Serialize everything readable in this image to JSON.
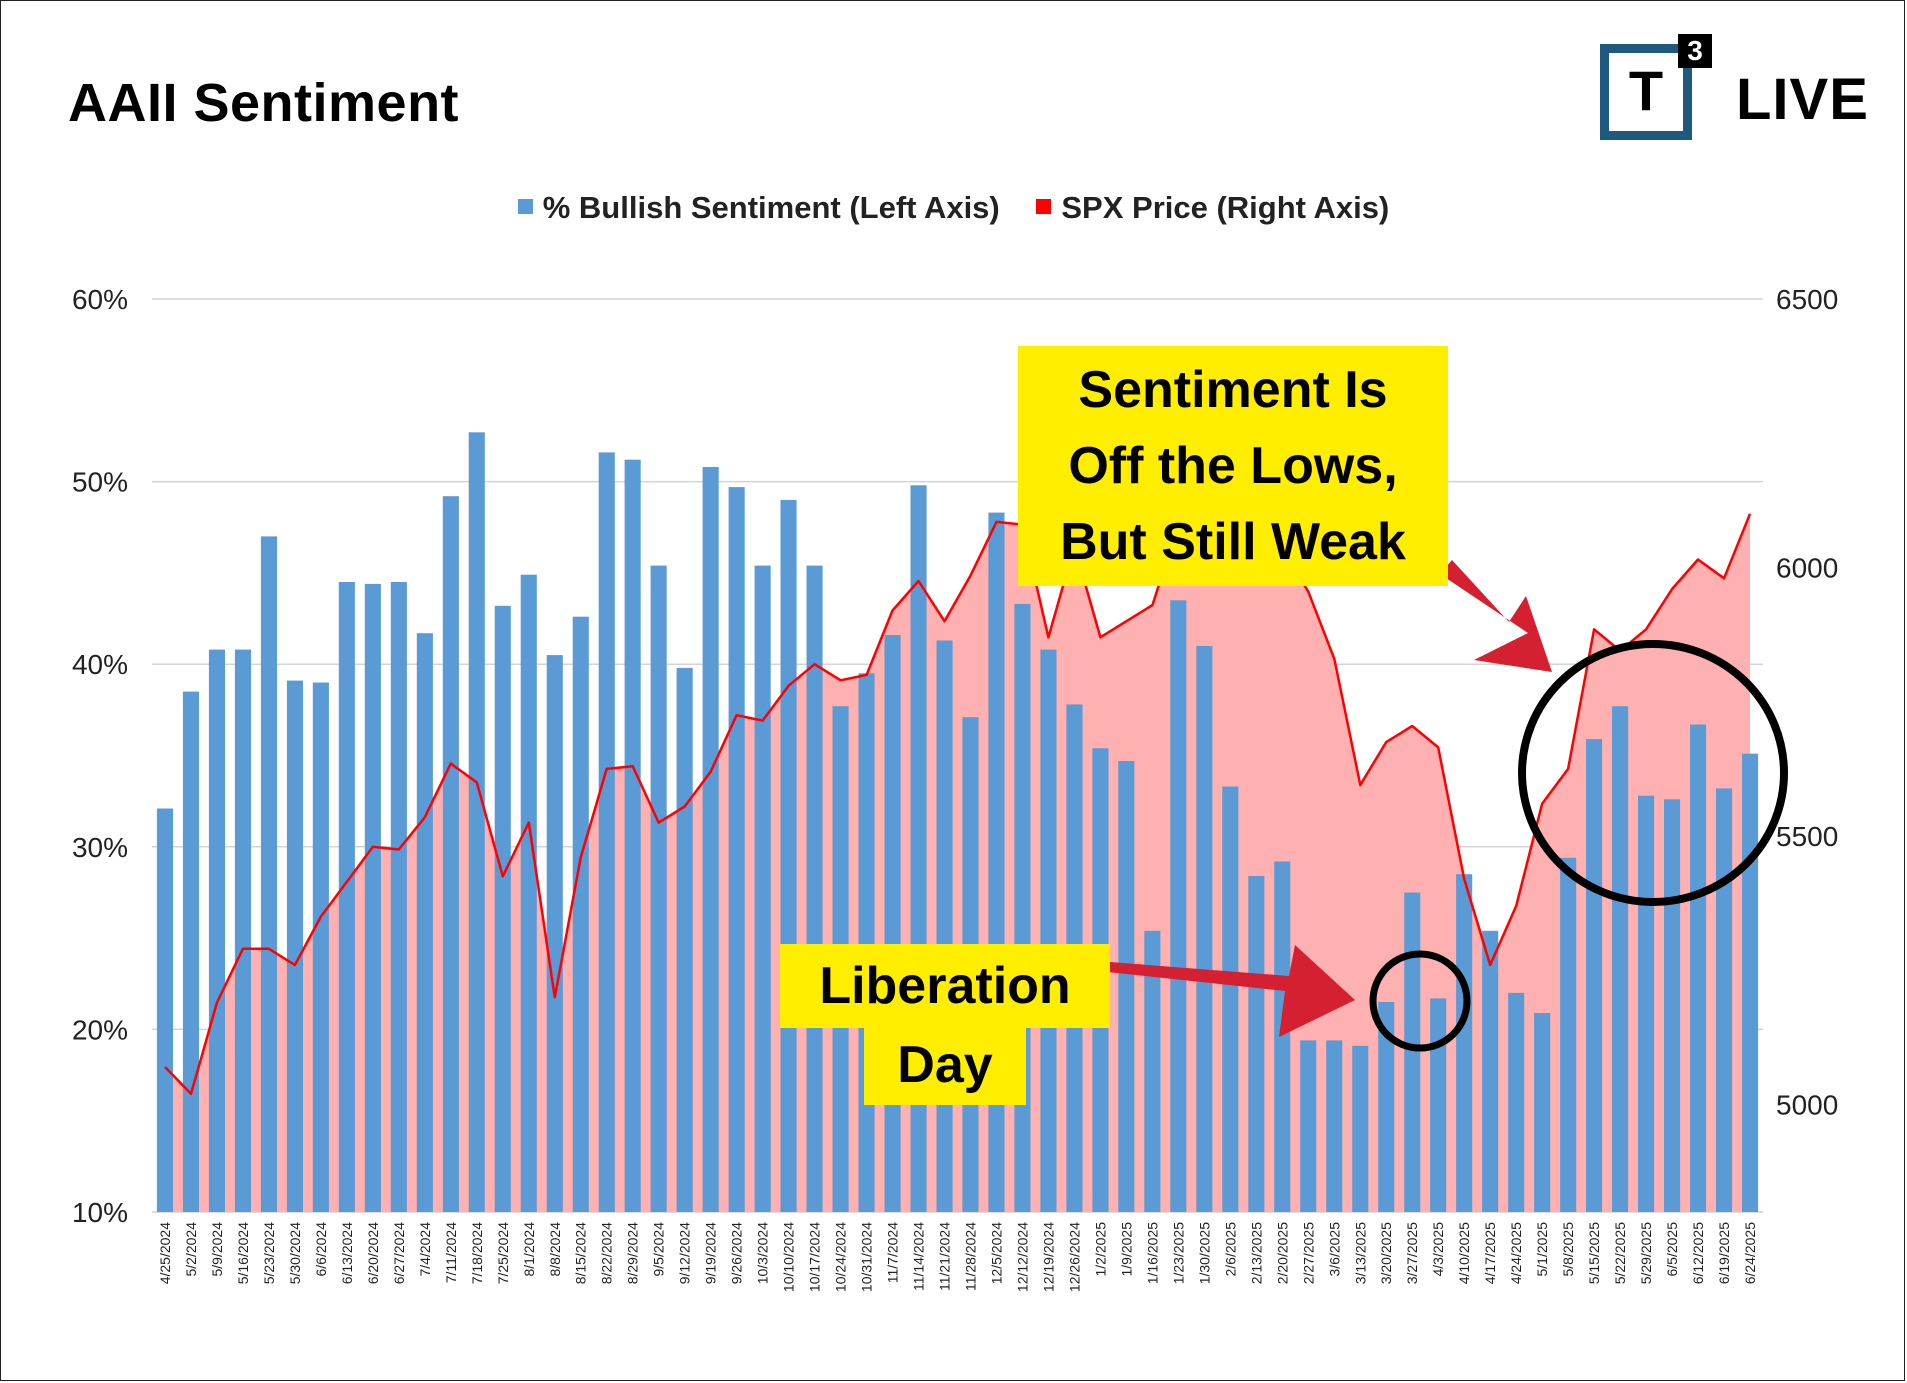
{
  "title": "AAII Sentiment",
  "logo": {
    "mark": "T",
    "superscript": "3",
    "text": "LIVE"
  },
  "legend": [
    {
      "label": "% Bullish Sentiment (Left Axis)",
      "color": "#5b9bd5"
    },
    {
      "label": "SPX Price (Right Axis)",
      "color": "#ff0000"
    }
  ],
  "annotations": {
    "sentiment_callout": [
      "Sentiment Is",
      "Off the Lows,",
      "But Still Weak"
    ],
    "liberation_line1": "Liberation",
    "liberation_line2": "Day"
  },
  "colors": {
    "bar": "#5b9bd5",
    "line": "#ff0000",
    "area": "#ffb0b0",
    "callout": "#ffee00",
    "arrow": "#d42030"
  },
  "chart_data": {
    "type": "bar",
    "title": "AAII Sentiment",
    "left_axis": {
      "min": 10,
      "max": 60,
      "ticks": [
        "10%",
        "20%",
        "30%",
        "40%",
        "50%",
        "60%"
      ]
    },
    "right_axis": {
      "min": 4800,
      "max": 6500,
      "ticks": [
        "5000",
        "5500",
        "6000",
        "6500"
      ]
    },
    "grid": true,
    "legend_position": "top-center",
    "categories": [
      "4/25/2024",
      "5/2/2024",
      "5/9/2024",
      "5/16/2024",
      "5/23/2024",
      "5/30/2024",
      "6/6/2024",
      "6/13/2024",
      "6/20/2024",
      "6/27/2024",
      "7/4/2024",
      "7/11/2024",
      "7/18/2024",
      "7/25/2024",
      "8/1/2024",
      "8/8/2024",
      "8/15/2024",
      "8/22/2024",
      "8/29/2024",
      "9/5/2024",
      "9/12/2024",
      "9/19/2024",
      "9/26/2024",
      "10/3/2024",
      "10/10/2024",
      "10/17/2024",
      "10/24/2024",
      "10/31/2024",
      "11/7/2024",
      "11/14/2024",
      "11/21/2024",
      "11/28/2024",
      "12/5/2024",
      "12/12/2024",
      "12/19/2024",
      "12/26/2024",
      "1/2/2025",
      "1/9/2025",
      "1/16/2025",
      "1/23/2025",
      "1/30/2025",
      "2/6/2025",
      "2/13/2025",
      "2/20/2025",
      "2/27/2025",
      "3/6/2025",
      "3/13/2025",
      "3/20/2025",
      "3/27/2025",
      "4/3/2025",
      "4/10/2025",
      "4/17/2025",
      "4/24/2025",
      "5/1/2025",
      "5/8/2025",
      "5/15/2025",
      "5/22/2025",
      "5/29/2025",
      "6/5/2025",
      "6/12/2025",
      "6/19/2025",
      "6/24/2025"
    ],
    "series": [
      {
        "name": "% Bullish Sentiment (Left Axis)",
        "type": "bar",
        "axis": "left",
        "values": [
          32.1,
          38.5,
          40.8,
          40.8,
          47.0,
          39.1,
          39.0,
          44.5,
          44.4,
          44.5,
          41.7,
          49.2,
          52.7,
          43.2,
          44.9,
          40.5,
          42.6,
          51.6,
          51.2,
          45.4,
          39.8,
          50.8,
          49.7,
          45.4,
          49.0,
          45.4,
          37.7,
          39.5,
          41.6,
          49.8,
          41.3,
          37.1,
          48.3,
          43.3,
          40.8,
          37.8,
          35.4,
          34.7,
          25.4,
          43.5,
          41.0,
          33.3,
          28.4,
          29.2,
          19.4,
          19.4,
          19.1,
          21.5,
          27.5,
          21.7,
          28.5,
          25.4,
          22.0,
          20.9,
          29.4,
          35.9,
          37.7,
          32.8,
          32.6,
          36.7,
          33.2,
          35.1
        ]
      },
      {
        "name": "SPX Price (Right Axis)",
        "type": "area-line",
        "axis": "right",
        "values": [
          5070,
          5020,
          5190,
          5290,
          5290,
          5260,
          5350,
          5415,
          5480,
          5475,
          5535,
          5635,
          5600,
          5425,
          5525,
          5200,
          5460,
          5625,
          5630,
          5525,
          5555,
          5620,
          5725,
          5715,
          5780,
          5820,
          5790,
          5800,
          5920,
          5975,
          5900,
          5985,
          6085,
          6080,
          5870,
          6040,
          5870,
          5900,
          5930,
          6080,
          6050,
          6040,
          6030,
          6035,
          5955,
          5830,
          5595,
          5675,
          5705,
          5665,
          5420,
          5260,
          5370,
          5560,
          5625,
          5885,
          5845,
          5885,
          5960,
          6015,
          5980,
          6100
        ]
      }
    ]
  }
}
